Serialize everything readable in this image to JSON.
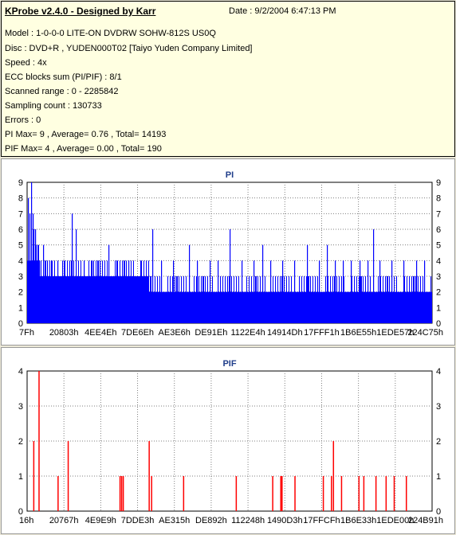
{
  "info": {
    "title": "KProbe v2.4.0 - Designed by Karr",
    "date": "Date : 9/2/2004 6:47:13 PM",
    "lines": [
      "Model : 1-0-0-0 LITE-ON DVDRW SOHW-812S  US0Q",
      "Disc : DVD+R , YUDEN000T02 [Taiyo Yuden Company Limited]",
      "Speed : 4x",
      "ECC blocks sum (PI/PIF) : 8/1",
      "Scanned range : 0 - 2285842",
      "Sampling count : 130733",
      "Errors : 0",
      "PI Max= 9 , Average= 0.76 , Total= 14193",
      "PIF Max= 4 , Average= 0.00 , Total= 190"
    ]
  },
  "colors": {
    "pi_fill": "#0000ff",
    "pif_bar": "#ff0000",
    "chart_title": "#1f3d8a",
    "grid": "#7f7f7f"
  },
  "chart_data": [
    {
      "type": "bar",
      "title": "PI",
      "xlabel": "",
      "ylabel": "",
      "ylim": [
        0,
        9
      ],
      "yticks": [
        0,
        1,
        2,
        3,
        4,
        5,
        6,
        7,
        8,
        9
      ],
      "xticks": [
        "7Fh",
        "20803h",
        "4EE4Eh",
        "7DE6Eh",
        "AE3E6h",
        "DE91Eh",
        "1122E4h",
        "14914Dh",
        "17FFF1h",
        "1B6E55h",
        "1EDE57h",
        "224C75h"
      ],
      "grid": true,
      "baseline_by_position": [
        [
          0.0,
          4
        ],
        [
          0.03,
          3
        ],
        [
          0.3,
          2
        ],
        [
          0.5,
          2
        ],
        [
          0.7,
          2
        ],
        [
          0.85,
          2
        ],
        [
          1.0,
          2
        ]
      ],
      "spikes": [
        [
          0.002,
          8
        ],
        [
          0.006,
          7
        ],
        [
          0.01,
          9
        ],
        [
          0.013,
          7
        ],
        [
          0.016,
          6
        ],
        [
          0.02,
          6
        ],
        [
          0.025,
          5
        ],
        [
          0.03,
          4
        ],
        [
          0.04,
          5
        ],
        [
          0.05,
          4
        ],
        [
          0.06,
          4
        ],
        [
          0.075,
          4
        ],
        [
          0.09,
          4
        ],
        [
          0.11,
          7
        ],
        [
          0.12,
          6
        ],
        [
          0.14,
          4
        ],
        [
          0.16,
          4
        ],
        [
          0.18,
          4
        ],
        [
          0.2,
          5
        ],
        [
          0.22,
          4
        ],
        [
          0.25,
          4
        ],
        [
          0.28,
          4
        ],
        [
          0.31,
          6
        ],
        [
          0.33,
          4
        ],
        [
          0.36,
          4
        ],
        [
          0.4,
          5
        ],
        [
          0.42,
          4
        ],
        [
          0.45,
          4
        ],
        [
          0.47,
          4
        ],
        [
          0.5,
          6
        ],
        [
          0.53,
          4
        ],
        [
          0.56,
          4
        ],
        [
          0.58,
          5
        ],
        [
          0.6,
          4
        ],
        [
          0.63,
          4
        ],
        [
          0.66,
          4
        ],
        [
          0.69,
          5
        ],
        [
          0.72,
          4
        ],
        [
          0.74,
          5
        ],
        [
          0.76,
          4
        ],
        [
          0.78,
          4
        ],
        [
          0.8,
          4
        ],
        [
          0.82,
          4
        ],
        [
          0.84,
          4
        ],
        [
          0.855,
          6
        ],
        [
          0.87,
          4
        ],
        [
          0.9,
          4
        ],
        [
          0.93,
          4
        ],
        [
          0.96,
          4
        ],
        [
          0.98,
          4
        ]
      ],
      "dips": [
        [
          0.4,
          1
        ],
        [
          0.72,
          1
        ],
        [
          0.9,
          1
        ]
      ]
    },
    {
      "type": "bar",
      "title": "PIF",
      "xlabel": "",
      "ylabel": "",
      "ylim": [
        0,
        4
      ],
      "yticks": [
        0,
        1,
        2,
        3,
        4
      ],
      "xticks": [
        "16h",
        "20767h",
        "4E9E9h",
        "7DDE3h",
        "AE315h",
        "DE892h",
        "112248h",
        "1490D3h",
        "17FFCFh",
        "1B6E33h",
        "1EDE00h",
        "224B91h"
      ],
      "grid": true,
      "bars": [
        [
          0.015,
          2
        ],
        [
          0.028,
          4
        ],
        [
          0.075,
          1
        ],
        [
          0.1,
          2
        ],
        [
          0.228,
          1
        ],
        [
          0.232,
          1
        ],
        [
          0.236,
          1
        ],
        [
          0.3,
          2
        ],
        [
          0.306,
          1
        ],
        [
          0.385,
          1
        ],
        [
          0.515,
          1
        ],
        [
          0.605,
          1
        ],
        [
          0.625,
          1
        ],
        [
          0.628,
          1
        ],
        [
          0.66,
          1
        ],
        [
          0.73,
          1
        ],
        [
          0.75,
          1
        ],
        [
          0.755,
          2
        ],
        [
          0.775,
          1
        ],
        [
          0.818,
          1
        ],
        [
          0.83,
          1
        ],
        [
          0.86,
          1
        ],
        [
          0.885,
          1
        ],
        [
          0.905,
          1
        ],
        [
          0.935,
          1
        ]
      ]
    }
  ]
}
